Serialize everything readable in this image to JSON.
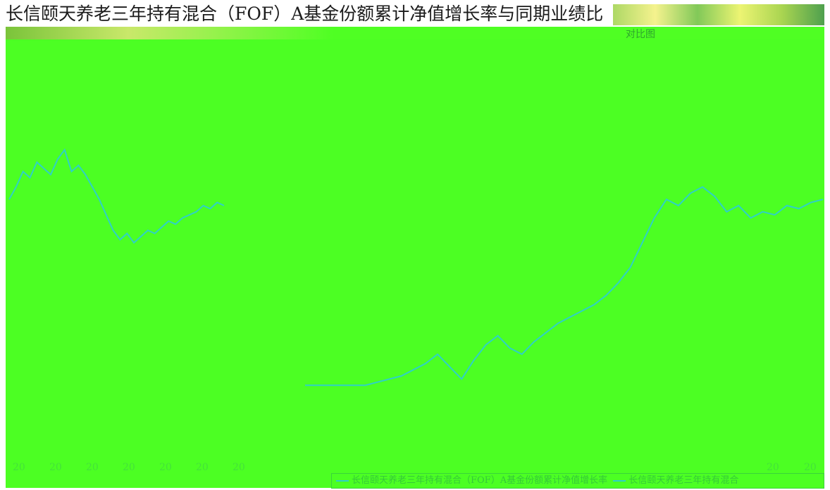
{
  "title": "长信颐天养老三年持有混合（FOF）A基金份额累计净值增长率与同期业绩比",
  "subtitle_label": "对比图",
  "chart_data": {
    "type": "line",
    "x_tick_labels": [
      "20",
      "20",
      "20",
      "20",
      "20",
      "20",
      "20",
      "20",
      "20"
    ],
    "series": [
      {
        "name": "长信颐天养老三年持有混合（FOF）A基金份额累计净值增长率",
        "color": "#2fd0c8",
        "segment": "left",
        "values": [
          0.62,
          0.66,
          0.71,
          0.69,
          0.74,
          0.72,
          0.7,
          0.75,
          0.78,
          0.71,
          0.73,
          0.7,
          0.66,
          0.62,
          0.57,
          0.52,
          0.49,
          0.51,
          0.48,
          0.5,
          0.52,
          0.51,
          0.53,
          0.55,
          0.54,
          0.56,
          0.57,
          0.58,
          0.6,
          0.59,
          0.61,
          0.6
        ]
      },
      {
        "name": "长信颐天养老三年持有混合",
        "color": "#2fd0c8",
        "segment": "right",
        "values": [
          0.02,
          0.02,
          0.02,
          0.02,
          0.02,
          0.02,
          0.03,
          0.04,
          0.05,
          0.07,
          0.09,
          0.12,
          0.08,
          0.04,
          0.1,
          0.15,
          0.18,
          0.14,
          0.12,
          0.16,
          0.19,
          0.22,
          0.24,
          0.26,
          0.28,
          0.31,
          0.35,
          0.4,
          0.48,
          0.56,
          0.62,
          0.6,
          0.64,
          0.66,
          0.63,
          0.58,
          0.6,
          0.56,
          0.58,
          0.57,
          0.6,
          0.59,
          0.61,
          0.62
        ]
      }
    ],
    "legend_position": "bottom",
    "grid": false
  },
  "legend": {
    "entries": [
      "长信颐天养老三年持有混合（FOF）A基金份额累计净值增长率",
      "长信颐天养老三年持有混合"
    ]
  }
}
